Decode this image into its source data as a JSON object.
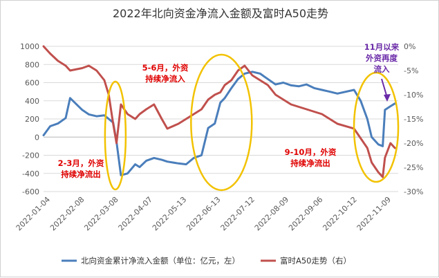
{
  "chart_data": {
    "type": "line",
    "title": "2022年北向资金净流入金额及富时A50走势",
    "x_tick_labels": [
      "2022-01-04",
      "2022-02-08",
      "2022-03-08",
      "2022-04-07",
      "2022-05-13",
      "2022-06-13",
      "2022-07-12",
      "2022-08-09",
      "2022-09-06",
      "2022-10-12",
      "2022-11-09"
    ],
    "left_axis": {
      "ylim": [
        -600,
        1000
      ],
      "ticks": [
        "-600",
        "-400",
        "-200",
        "0",
        "200",
        "400",
        "600",
        "800",
        "1000"
      ]
    },
    "right_axis": {
      "ylim": [
        -30,
        0
      ],
      "ticks": [
        "-30%",
        "-25%",
        "-20%",
        "-15%",
        "-10%",
        "-5%",
        "0%"
      ]
    },
    "grid": "horizontal",
    "legend_position": "bottom",
    "series": [
      {
        "name": "北向资金累计净流入金额（单位：亿元，左）",
        "axis": "left",
        "color": "#4a7ebb",
        "x": [
          "2022-01-04",
          "2022-01-10",
          "2022-01-17",
          "2022-01-24",
          "2022-01-28",
          "2022-02-08",
          "2022-02-14",
          "2022-02-21",
          "2022-02-28",
          "2022-03-04",
          "2022-03-08",
          "2022-03-11",
          "2022-03-15",
          "2022-03-21",
          "2022-03-28",
          "2022-04-01",
          "2022-04-07",
          "2022-04-14",
          "2022-04-21",
          "2022-04-26",
          "2022-05-06",
          "2022-05-13",
          "2022-05-20",
          "2022-05-27",
          "2022-06-02",
          "2022-06-08",
          "2022-06-13",
          "2022-06-17",
          "2022-06-23",
          "2022-06-29",
          "2022-07-05",
          "2022-07-12",
          "2022-07-19",
          "2022-07-26",
          "2022-08-02",
          "2022-08-09",
          "2022-08-16",
          "2022-08-23",
          "2022-08-30",
          "2022-09-06",
          "2022-09-13",
          "2022-09-20",
          "2022-09-27",
          "2022-10-12",
          "2022-10-18",
          "2022-10-24",
          "2022-10-28",
          "2022-11-03",
          "2022-11-07",
          "2022-11-09",
          "2022-11-14",
          "2022-11-18"
        ],
        "values": [
          20,
          120,
          150,
          210,
          430,
          300,
          250,
          230,
          240,
          200,
          160,
          -50,
          -420,
          -400,
          -300,
          -330,
          -260,
          -230,
          -250,
          -270,
          -290,
          -300,
          -230,
          -200,
          100,
          150,
          380,
          430,
          540,
          640,
          700,
          720,
          700,
          640,
          580,
          600,
          570,
          560,
          580,
          540,
          520,
          500,
          480,
          520,
          400,
          200,
          0,
          -80,
          -100,
          300,
          340,
          370
        ]
      },
      {
        "name": "富时A50走势（右）",
        "axis": "right",
        "color": "#c0504d",
        "x": [
          "2022-01-04",
          "2022-01-10",
          "2022-01-17",
          "2022-01-24",
          "2022-01-28",
          "2022-02-08",
          "2022-02-14",
          "2022-02-21",
          "2022-02-28",
          "2022-03-04",
          "2022-03-08",
          "2022-03-11",
          "2022-03-15",
          "2022-03-21",
          "2022-03-28",
          "2022-04-01",
          "2022-04-07",
          "2022-04-14",
          "2022-04-21",
          "2022-04-26",
          "2022-05-06",
          "2022-05-13",
          "2022-05-20",
          "2022-05-27",
          "2022-06-02",
          "2022-06-08",
          "2022-06-13",
          "2022-06-17",
          "2022-06-23",
          "2022-06-29",
          "2022-07-05",
          "2022-07-12",
          "2022-07-19",
          "2022-07-26",
          "2022-08-02",
          "2022-08-09",
          "2022-08-16",
          "2022-08-23",
          "2022-08-30",
          "2022-09-06",
          "2022-09-13",
          "2022-09-20",
          "2022-09-27",
          "2022-10-12",
          "2022-10-18",
          "2022-10-24",
          "2022-10-28",
          "2022-11-03",
          "2022-11-07",
          "2022-11-09",
          "2022-11-14",
          "2022-11-18"
        ],
        "values": [
          0,
          -1.5,
          -3,
          -4,
          -5,
          -4.5,
          -4,
          -5,
          -7,
          -10,
          -16,
          -20,
          -12,
          -14,
          -15,
          -14,
          -13,
          -12,
          -15,
          -17,
          -16,
          -15,
          -14,
          -13,
          -11,
          -10,
          -9.5,
          -8,
          -7,
          -5,
          -4,
          -6,
          -7,
          -8,
          -10,
          -11,
          -12,
          -12.5,
          -13,
          -13.5,
          -14,
          -15,
          -16,
          -17,
          -19,
          -21,
          -24,
          -26,
          -27,
          -23,
          -20,
          -21
        ]
      }
    ],
    "annotations": [
      {
        "lines": [
          "2-3月，外资",
          "持续净流出"
        ],
        "color": "#e00000"
      },
      {
        "lines": [
          "5-6月，外资",
          "持续净流入"
        ],
        "color": "#e00000"
      },
      {
        "lines": [
          "9-10月，外资",
          "持续净流出"
        ],
        "color": "#e00000"
      },
      {
        "lines": [
          "11月以来",
          "外资再度",
          "流入"
        ],
        "color": "#6a2aa8"
      }
    ],
    "highlight_color": "#f2c200"
  }
}
